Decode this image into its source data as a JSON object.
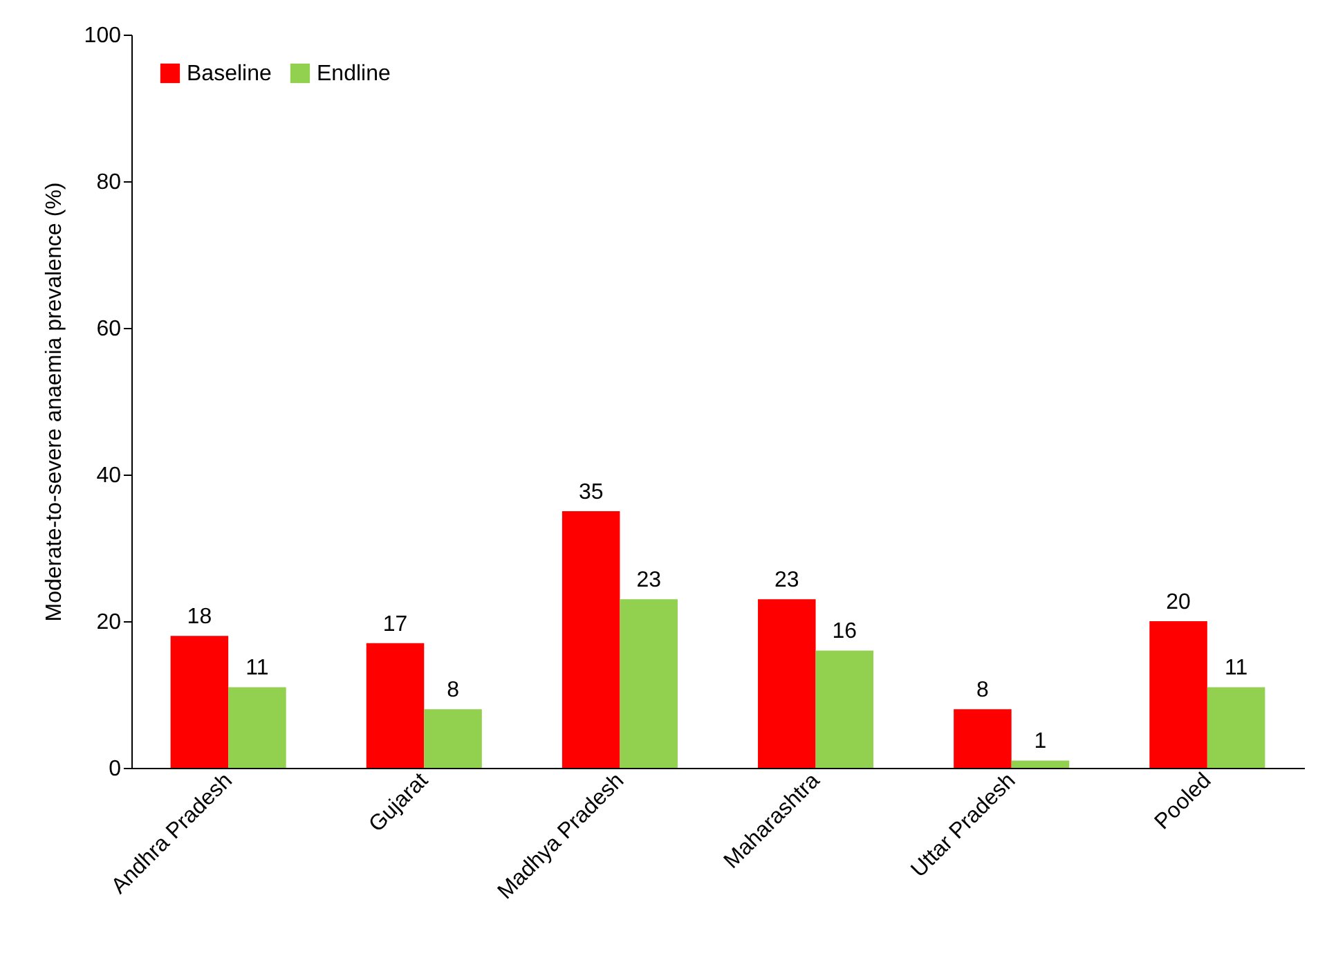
{
  "chart_data": {
    "type": "bar",
    "ylabel": "Moderate-to-severe anaemia prevalence (%)",
    "categories": [
      "Andhra Pradesh",
      "Gujarat",
      "Madhya Pradesh",
      "Maharashtra",
      "Uttar Pradesh",
      "Pooled"
    ],
    "series": [
      {
        "name": "Baseline",
        "color": "#ff0000",
        "values": [
          18,
          17,
          35,
          23,
          8,
          20
        ]
      },
      {
        "name": "Endline",
        "color": "#92d050",
        "values": [
          11,
          8,
          23,
          16,
          1,
          11
        ]
      }
    ],
    "ylim": [
      0,
      100
    ],
    "yticks": [
      0,
      20,
      40,
      60,
      80,
      100
    ],
    "grid": false,
    "legend": "top left",
    "data_labels": true
  }
}
